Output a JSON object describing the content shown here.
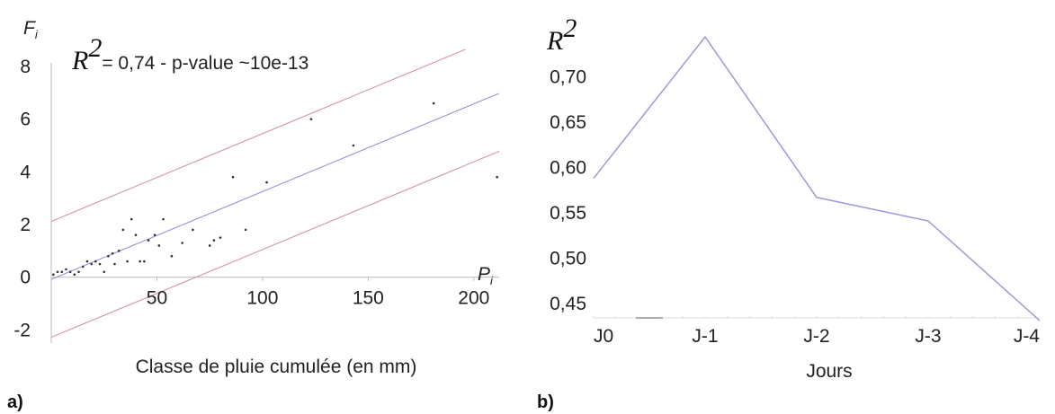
{
  "colors": {
    "fit": "#8a8ad8",
    "band": "#d48a9a",
    "point": "#333333",
    "line_b": "#9a9ad8",
    "axis": "#bbbbbb"
  },
  "chart_data": [
    {
      "type": "scatter",
      "panel_label": "a)",
      "xlabel": "Classe de pluie cumulée (en mm)",
      "x_axis_name": "P",
      "x_axis_sub": "i",
      "y_axis_name": "F",
      "y_axis_sub": "i",
      "annotation": {
        "r_symbol": "R",
        "exponent": "2",
        "text": "= 0,74 - p-value ~10e-13"
      },
      "xlim": [
        0,
        212
      ],
      "ylim": [
        -2.5,
        9.5
      ],
      "xticks": [
        {
          "v": 50,
          "label": "50"
        },
        {
          "v": 100,
          "label": "100"
        },
        {
          "v": 150,
          "label": "150"
        },
        {
          "v": 200,
          "label": "200"
        }
      ],
      "yticks": [
        {
          "v": -2,
          "label": "-2"
        },
        {
          "v": 0,
          "label": "0"
        },
        {
          "v": 2,
          "label": "2"
        },
        {
          "v": 4,
          "label": "4"
        },
        {
          "v": 6,
          "label": "6"
        },
        {
          "v": 8,
          "label": "8"
        }
      ],
      "points": [
        [
          1,
          0.1
        ],
        [
          3,
          0.2
        ],
        [
          5,
          0.2
        ],
        [
          7,
          0.3
        ],
        [
          9,
          0.2
        ],
        [
          11,
          0.1
        ],
        [
          13,
          0.2
        ],
        [
          15,
          0.4
        ],
        [
          17,
          0.6
        ],
        [
          19,
          0.5
        ],
        [
          21,
          0.6
        ],
        [
          23,
          0.5
        ],
        [
          25,
          0.2
        ],
        [
          27,
          0.8
        ],
        [
          29,
          0.9
        ],
        [
          30,
          0.5
        ],
        [
          32,
          1.0
        ],
        [
          34,
          1.8
        ],
        [
          36,
          0.6
        ],
        [
          38,
          2.2
        ],
        [
          40,
          1.6
        ],
        [
          42,
          0.6
        ],
        [
          44,
          0.6
        ],
        [
          46,
          1.4
        ],
        [
          49,
          1.6
        ],
        [
          51,
          1.2
        ],
        [
          53,
          2.2
        ],
        [
          57,
          0.8
        ],
        [
          62,
          1.3
        ],
        [
          67,
          1.8
        ],
        [
          75,
          1.2
        ],
        [
          77,
          1.4
        ],
        [
          80,
          1.5
        ],
        [
          86,
          3.8
        ],
        [
          92,
          1.8
        ],
        [
          102,
          3.6
        ],
        [
          123,
          6.0
        ],
        [
          143,
          5.0
        ],
        [
          181,
          6.6
        ],
        [
          211,
          3.8
        ]
      ],
      "fit_line": {
        "intercept": -0.08,
        "slope": 0.0333
      },
      "band_offset": 2.2
    },
    {
      "type": "line",
      "panel_label": "b)",
      "xlabel": "Jours",
      "y_axis_name": "R",
      "y_axis_exp": "2",
      "categories": [
        "J0",
        "J-1",
        "J-2",
        "J-3",
        "J-4"
      ],
      "values": [
        0.588,
        0.744,
        0.567,
        0.541,
        0.431
      ],
      "ylim": [
        0.434,
        0.76
      ],
      "yticks": [
        {
          "v": 0.45,
          "label": "0,45"
        },
        {
          "v": 0.5,
          "label": "0,50"
        },
        {
          "v": 0.55,
          "label": "0,55"
        },
        {
          "v": 0.6,
          "label": "0,60"
        },
        {
          "v": 0.65,
          "label": "0,65"
        },
        {
          "v": 0.7,
          "label": "0,70"
        }
      ]
    }
  ]
}
